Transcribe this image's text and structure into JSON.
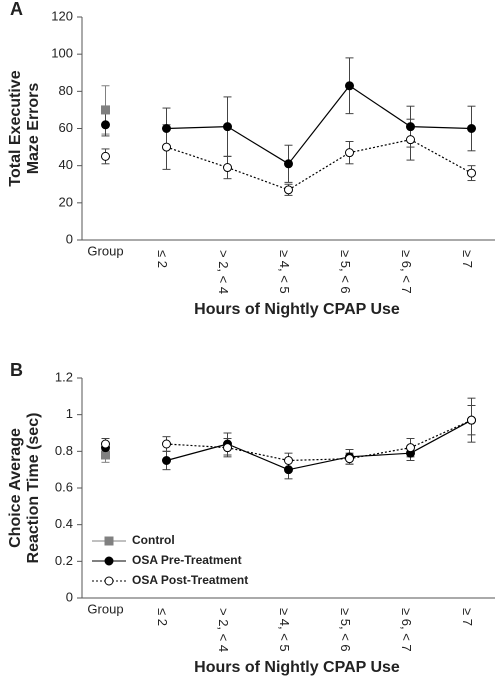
{
  "chart_data": [
    {
      "type": "line",
      "panel": "A",
      "ylabel": [
        "Total Executive",
        "Maze Errors"
      ],
      "xlabel": "Hours of Nightly CPAP Use",
      "categories": [
        "Group",
        "≤ 2",
        "> 2, < 4",
        "≥ 4, < 5",
        "≥ 5, < 6",
        "≥ 6, < 7",
        "≥ 7"
      ],
      "ylim": [
        0,
        120
      ],
      "yticks": [
        0,
        20,
        40,
        60,
        80,
        100,
        120
      ],
      "series": [
        {
          "name": "Control",
          "color": "#808080",
          "marker": "square",
          "dash": "solid",
          "values": [
            70,
            null,
            null,
            null,
            null,
            null,
            null
          ],
          "errors": [
            13,
            null,
            null,
            null,
            null,
            null,
            null
          ]
        },
        {
          "name": "OSA Pre-Treatment",
          "color": "#000000",
          "marker": "filled",
          "dash": "solid",
          "values": [
            62,
            60,
            61,
            41,
            83,
            61,
            60
          ],
          "errors": [
            6,
            11,
            16,
            10,
            15,
            11,
            12
          ]
        },
        {
          "name": "OSA Post-Treatment",
          "color": "#000000",
          "marker": "open",
          "dash": "dotted",
          "values": [
            45,
            50,
            39,
            27,
            47,
            54,
            36
          ],
          "errors": [
            4,
            12,
            6,
            3,
            6,
            11,
            4
          ]
        }
      ]
    },
    {
      "type": "line",
      "panel": "B",
      "ylabel": [
        "Choice Average",
        "Reaction Time (sec)"
      ],
      "xlabel": "Hours of Nightly CPAP Use",
      "categories": [
        "Group",
        "≤ 2",
        "> 2, < 4",
        "≥ 4, < 5",
        "≥ 5, < 6",
        "≥ 6, < 7",
        "≥ 7"
      ],
      "ylim": [
        0,
        1.2
      ],
      "yticks": [
        0,
        0.2,
        0.4,
        0.6,
        0.8,
        1,
        1.2
      ],
      "legend": "lower left",
      "series": [
        {
          "name": "Control",
          "color": "#808080",
          "marker": "square",
          "dash": "solid",
          "values": [
            0.78,
            null,
            null,
            null,
            null,
            null,
            null
          ],
          "errors": [
            0.04,
            null,
            null,
            null,
            null,
            null,
            null
          ]
        },
        {
          "name": "OSA Pre-Treatment",
          "color": "#000000",
          "marker": "filled",
          "dash": "solid",
          "values": [
            0.82,
            0.75,
            0.84,
            0.7,
            0.77,
            0.79,
            0.97
          ],
          "errors": [
            0.03,
            0.05,
            0.06,
            0.05,
            0.04,
            0.04,
            0.12
          ]
        },
        {
          "name": "OSA Post-Treatment",
          "color": "#000000",
          "marker": "open",
          "dash": "dotted",
          "values": [
            0.84,
            0.84,
            0.82,
            0.75,
            0.76,
            0.82,
            0.97
          ],
          "errors": [
            0.03,
            0.04,
            0.05,
            0.04,
            0.03,
            0.05,
            0.08
          ]
        }
      ]
    }
  ]
}
